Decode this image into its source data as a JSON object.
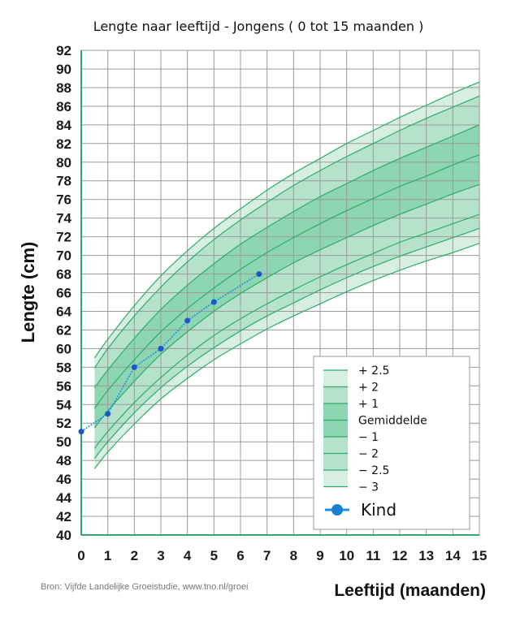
{
  "chart_data": {
    "type": "line",
    "title": "Lengte naar leeftijd - Jongens ( 0 tot 15 maanden )",
    "xlabel": "Leeftijd (maanden)",
    "ylabel": "Lengte (cm)",
    "xlim": [
      0,
      15
    ],
    "ylim": [
      40,
      92
    ],
    "xticks": [
      "0",
      "1",
      "2",
      "3",
      "4",
      "5",
      "6",
      "7",
      "8",
      "9",
      "10",
      "11",
      "12",
      "13",
      "14",
      "15"
    ],
    "yticks": [
      "40",
      "42",
      "44",
      "46",
      "48",
      "50",
      "52",
      "54",
      "56",
      "58",
      "60",
      "62",
      "64",
      "66",
      "68",
      "70",
      "72",
      "74",
      "76",
      "78",
      "80",
      "82",
      "84",
      "86",
      "88",
      "90",
      "92"
    ],
    "grid": true,
    "source": "Bron: Vijfde Landelijke Groeistudie, www.tno.nl/groei",
    "reference_curves": {
      "x": [
        0.5,
        1,
        2,
        3,
        4,
        5,
        6,
        7,
        8,
        9,
        10,
        11,
        12,
        13,
        14,
        15
      ],
      "series": [
        {
          "name": "+ 2.5",
          "values": [
            59.0,
            61.0,
            64.6,
            67.8,
            70.5,
            72.9,
            75.0,
            77.0,
            78.8,
            80.4,
            82.0,
            83.4,
            84.8,
            86.1,
            87.4,
            88.6
          ]
        },
        {
          "name": "+ 2",
          "values": [
            57.9,
            60.0,
            63.5,
            66.6,
            69.3,
            71.7,
            73.8,
            75.7,
            77.5,
            79.1,
            80.6,
            82.0,
            83.4,
            84.7,
            85.9,
            87.1
          ]
        },
        {
          "name": "+ 1",
          "values": [
            55.8,
            57.7,
            61.1,
            64.2,
            66.8,
            69.1,
            71.2,
            73.0,
            74.7,
            76.3,
            77.7,
            79.1,
            80.4,
            81.6,
            82.8,
            84.0
          ]
        },
        {
          "name": "Gemiddelde",
          "values": [
            53.6,
            55.5,
            58.8,
            61.8,
            64.3,
            66.5,
            68.5,
            70.3,
            71.9,
            73.4,
            74.8,
            76.1,
            77.4,
            78.5,
            79.7,
            80.8
          ]
        },
        {
          "name": "− 1",
          "values": [
            51.5,
            53.3,
            56.5,
            59.4,
            61.8,
            64.0,
            65.9,
            67.6,
            69.2,
            70.6,
            71.9,
            73.2,
            74.4,
            75.5,
            76.6,
            77.6
          ]
        },
        {
          "name": "− 2",
          "values": [
            49.3,
            51.1,
            54.2,
            56.9,
            59.3,
            61.4,
            63.2,
            64.8,
            66.3,
            67.7,
            69.0,
            70.2,
            71.4,
            72.4,
            73.4,
            74.4
          ]
        },
        {
          "name": "− 2.5",
          "values": [
            48.2,
            50.0,
            53.1,
            55.8,
            58.1,
            60.1,
            61.9,
            63.5,
            64.9,
            66.3,
            67.6,
            68.8,
            69.9,
            70.9,
            71.9,
            72.9
          ]
        },
        {
          "name": "− 3",
          "values": [
            47.1,
            48.9,
            51.9,
            54.6,
            56.8,
            58.8,
            60.5,
            62.1,
            63.5,
            64.8,
            66.1,
            67.3,
            68.4,
            69.4,
            70.3,
            71.3
          ]
        }
      ]
    },
    "series": [
      {
        "name": "Kind",
        "color": "#1e8fe3",
        "points": [
          {
            "x": 0.0,
            "y": 51.1
          },
          {
            "x": 1.0,
            "y": 53.0
          },
          {
            "x": 2.0,
            "y": 58.0
          },
          {
            "x": 3.0,
            "y": 60.0
          },
          {
            "x": 4.0,
            "y": 63.0
          },
          {
            "x": 5.0,
            "y": 65.0
          },
          {
            "x": 6.7,
            "y": 68.0
          }
        ]
      }
    ],
    "legend": {
      "position": "bottom-right",
      "items": [
        "+ 2.5",
        "+ 2",
        "+ 1",
        "Gemiddelde",
        "− 1",
        "− 2",
        "− 2.5",
        "− 3"
      ],
      "kind_label": "Kind"
    },
    "colors": {
      "band_outer": "#d6efe2",
      "band_mid": "#b5e2ca",
      "band_inner": "#8ed5b1",
      "curve_line": "#2dac6c",
      "grid": "#9a9a9a",
      "axis": "#1a9a5a",
      "kind_line": "#1e8fe3",
      "kind_marker": "#1a57c8"
    }
  }
}
